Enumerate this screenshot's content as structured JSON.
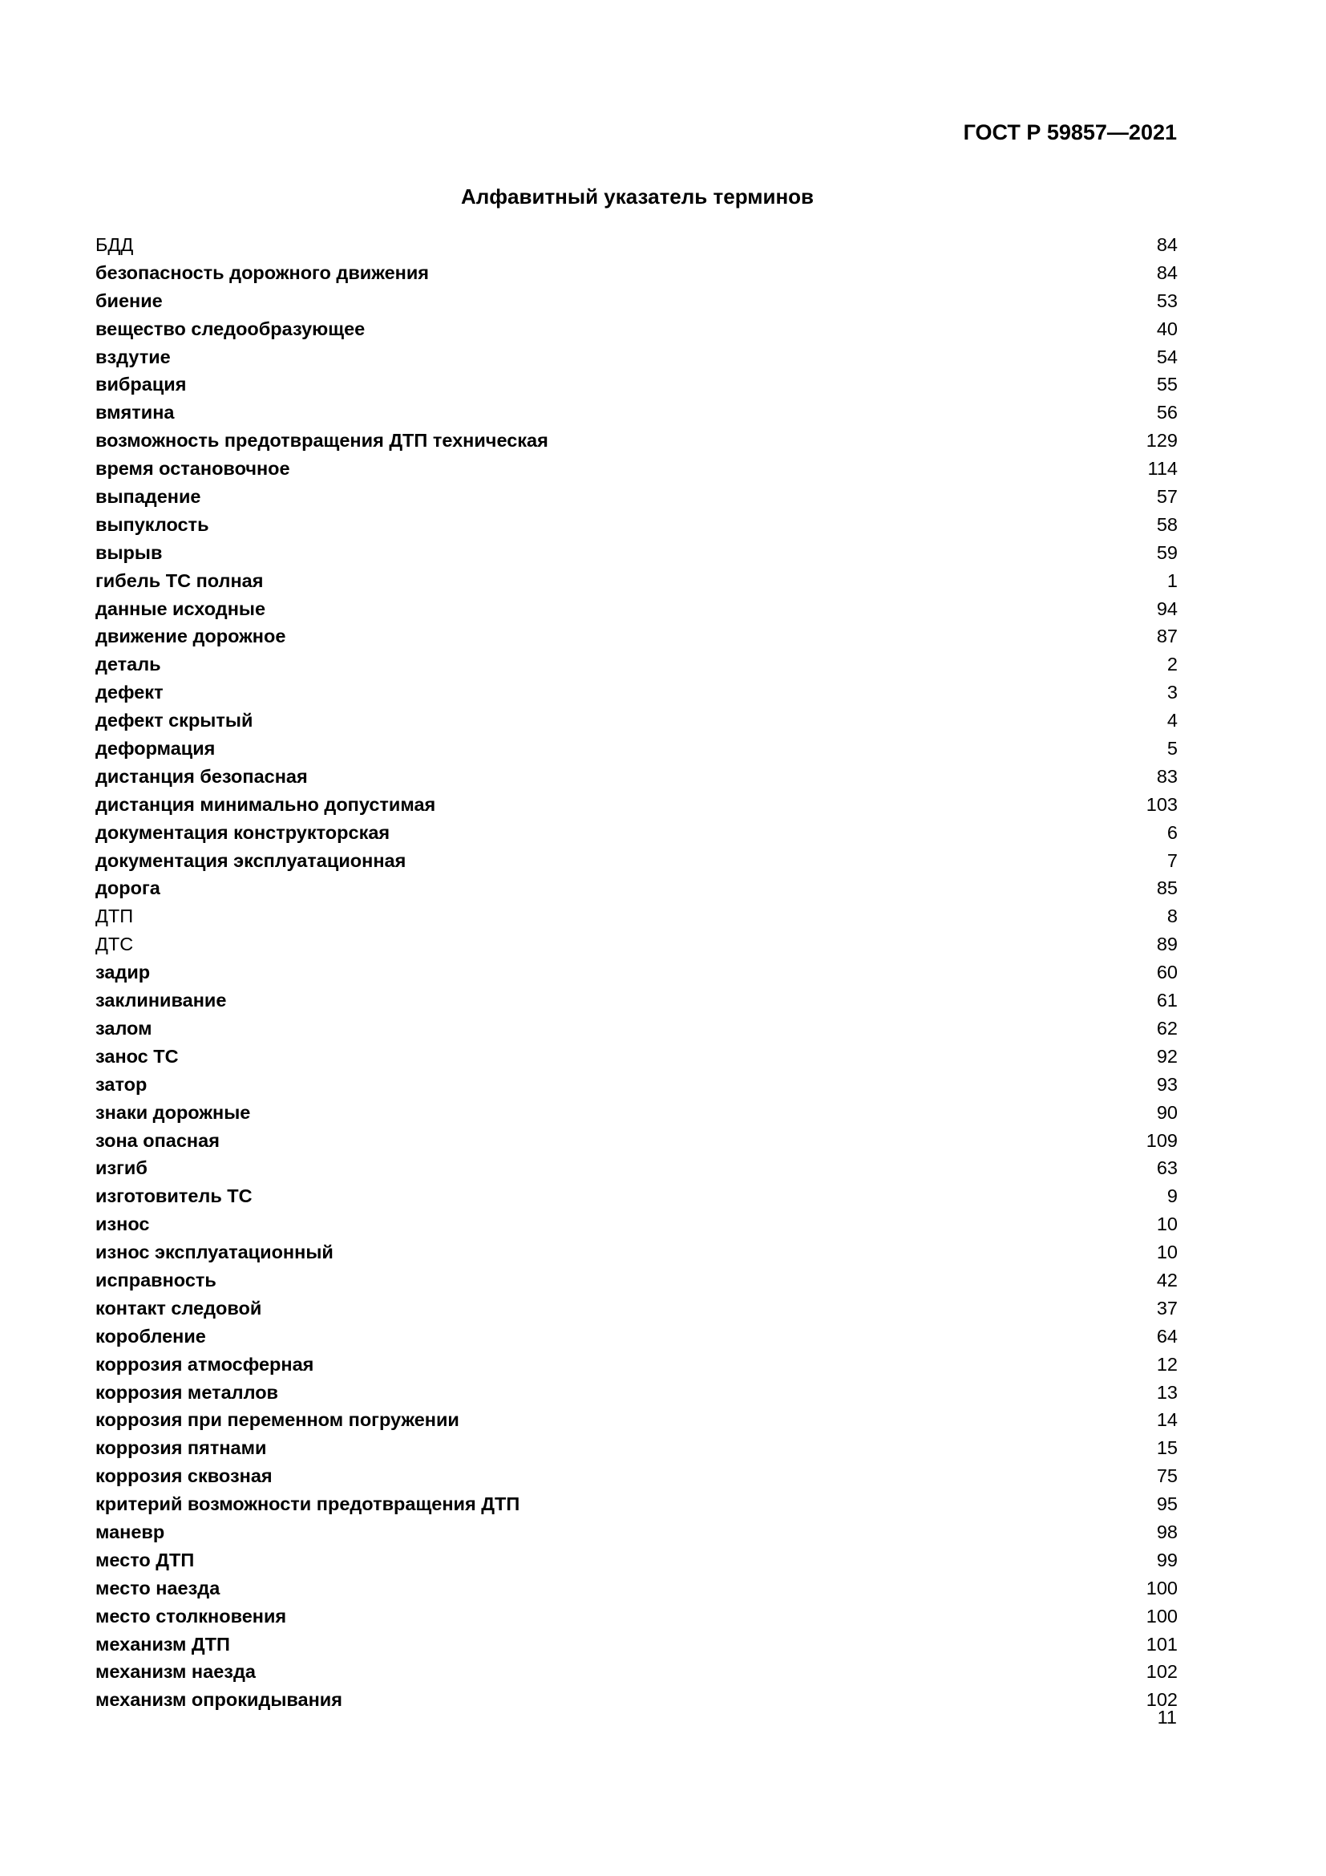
{
  "header": {
    "doc_id": "ГОСТ Р 59857—2021"
  },
  "title": "Алфавитный указатель терминов",
  "entries": [
    {
      "term": "БДД",
      "page": "84",
      "bold": false
    },
    {
      "term": "безопасность дорожного движения",
      "page": "84",
      "bold": true
    },
    {
      "term": "биение",
      "page": "53",
      "bold": true
    },
    {
      "term": "вещество следообразующее",
      "page": "40",
      "bold": true
    },
    {
      "term": "вздутие",
      "page": "54",
      "bold": true
    },
    {
      "term": "вибрация",
      "page": "55",
      "bold": true
    },
    {
      "term": "вмятина",
      "page": "56",
      "bold": true
    },
    {
      "term": "возможность предотвращения ДТП техническая",
      "page": "129",
      "bold": true
    },
    {
      "term": "время остановочное",
      "page": "114",
      "bold": true
    },
    {
      "term": "выпадение",
      "page": "57",
      "bold": true
    },
    {
      "term": "выпуклость",
      "page": "58",
      "bold": true
    },
    {
      "term": "вырыв",
      "page": "59",
      "bold": true
    },
    {
      "term": "гибель ТС полная",
      "page": "1",
      "bold": true
    },
    {
      "term": "данные исходные",
      "page": "94",
      "bold": true
    },
    {
      "term": "движение дорожное",
      "page": "87",
      "bold": true
    },
    {
      "term": "деталь",
      "page": "2",
      "bold": true
    },
    {
      "term": "дефект",
      "page": "3",
      "bold": true
    },
    {
      "term": "дефект скрытый",
      "page": "4",
      "bold": true
    },
    {
      "term": "деформация",
      "page": "5",
      "bold": true
    },
    {
      "term": "дистанция безопасная",
      "page": "83",
      "bold": true
    },
    {
      "term": "дистанция минимально допустимая",
      "page": "103",
      "bold": true
    },
    {
      "term": "документация конструкторская",
      "page": "6",
      "bold": true
    },
    {
      "term": "документация эксплуатационная",
      "page": "7",
      "bold": true
    },
    {
      "term": "дорога",
      "page": "85",
      "bold": true
    },
    {
      "term": "ДТП",
      "page": "8",
      "bold": false
    },
    {
      "term": "ДТС",
      "page": "89",
      "bold": false
    },
    {
      "term": "задир",
      "page": "60",
      "bold": true
    },
    {
      "term": "заклинивание",
      "page": "61",
      "bold": true
    },
    {
      "term": "залом",
      "page": "62",
      "bold": true
    },
    {
      "term": "занос ТС",
      "page": "92",
      "bold": true
    },
    {
      "term": "затор",
      "page": "93",
      "bold": true
    },
    {
      "term": "знаки дорожные",
      "page": "90",
      "bold": true
    },
    {
      "term": "зона опасная",
      "page": "109",
      "bold": true
    },
    {
      "term": "изгиб",
      "page": "63",
      "bold": true
    },
    {
      "term": "изготовитель ТС",
      "page": "9",
      "bold": true
    },
    {
      "term": "износ",
      "page": "10",
      "bold": true
    },
    {
      "term": "износ эксплуатационный",
      "page": "10",
      "bold": true
    },
    {
      "term": "исправность",
      "page": "42",
      "bold": true
    },
    {
      "term": "контакт следовой",
      "page": "37",
      "bold": true
    },
    {
      "term": "коробление",
      "page": "64",
      "bold": true
    },
    {
      "term": "коррозия атмосферная",
      "page": "12",
      "bold": true
    },
    {
      "term": "коррозия металлов",
      "page": "13",
      "bold": true
    },
    {
      "term": "коррозия при переменном погружении",
      "page": "14",
      "bold": true
    },
    {
      "term": "коррозия пятнами",
      "page": "15",
      "bold": true
    },
    {
      "term": "коррозия сквозная",
      "page": "75",
      "bold": true
    },
    {
      "term": "критерий возможности предотвращения ДТП",
      "page": "95",
      "bold": true
    },
    {
      "term": "маневр",
      "page": "98",
      "bold": true
    },
    {
      "term": "место ДТП",
      "page": "99",
      "bold": true
    },
    {
      "term": "место наезда",
      "page": "100",
      "bold": true
    },
    {
      "term": "место столкновения",
      "page": "100",
      "bold": true
    },
    {
      "term": "механизм ДТП",
      "page": "101",
      "bold": true
    },
    {
      "term": "механизм наезда",
      "page": "102",
      "bold": true
    },
    {
      "term": "механизм опрокидывания",
      "page": "102",
      "bold": true
    }
  ],
  "footer": {
    "page_number": "11"
  }
}
